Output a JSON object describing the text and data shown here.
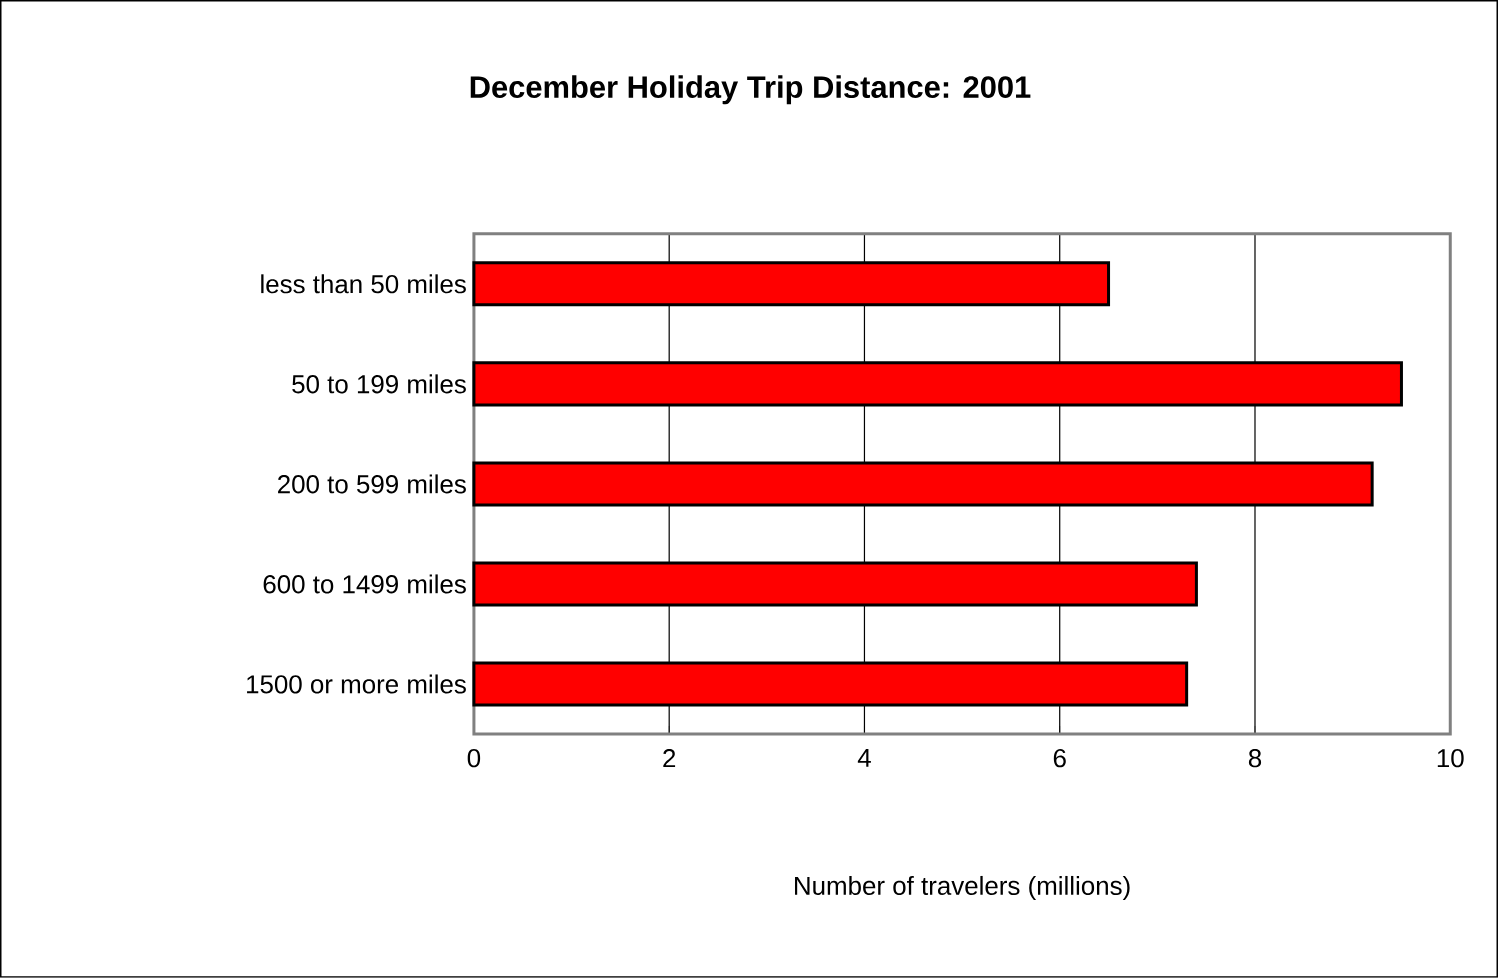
{
  "chart_data": {
    "type": "bar",
    "orientation": "horizontal",
    "title": "December Holiday Trip Distance:  2001",
    "xlabel": "Number of travelers (millions)",
    "categories": [
      "less than 50 miles",
      "50 to 199 miles",
      "200 to 599 miles",
      "600 to 1499 miles",
      "1500 or more miles"
    ],
    "values": [
      6.5,
      9.5,
      9.2,
      7.4,
      7.3
    ],
    "color": "#ff0000",
    "xlim": [
      0,
      10
    ],
    "xticks": [
      0,
      2,
      4,
      6,
      8,
      10
    ],
    "grid": "x"
  }
}
